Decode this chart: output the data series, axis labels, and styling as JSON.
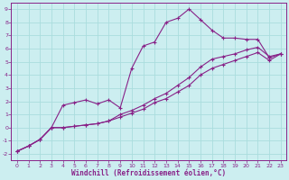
{
  "xlabel": "Windchill (Refroidissement éolien,°C)",
  "bg_color": "#cceef0",
  "line_color": "#882288",
  "grid_color": "#aadddd",
  "xlim": [
    -0.5,
    23.5
  ],
  "ylim": [
    -2.5,
    9.5
  ],
  "xticks": [
    0,
    1,
    2,
    3,
    4,
    5,
    6,
    7,
    8,
    9,
    10,
    11,
    12,
    13,
    14,
    15,
    16,
    17,
    18,
    19,
    20,
    21,
    22,
    23
  ],
  "yticks": [
    -2,
    -1,
    0,
    1,
    2,
    3,
    4,
    5,
    6,
    7,
    8,
    9
  ],
  "line1_x": [
    0,
    1,
    2,
    3,
    4,
    5,
    6,
    7,
    8,
    9,
    10,
    11,
    12,
    13,
    14,
    15,
    16,
    17,
    18,
    19,
    20,
    21,
    22,
    23
  ],
  "line1_y": [
    -1.8,
    -1.4,
    -0.9,
    0.0,
    1.7,
    1.9,
    2.1,
    1.8,
    2.1,
    1.5,
    4.5,
    6.2,
    6.5,
    8.0,
    8.3,
    9.0,
    8.2,
    7.4,
    6.8,
    6.8,
    6.7,
    6.7,
    5.3,
    5.6
  ],
  "line2_x": [
    0,
    1,
    2,
    3,
    4,
    5,
    6,
    7,
    8,
    9,
    10,
    11,
    12,
    13,
    14,
    15,
    16,
    17,
    18,
    19,
    20,
    21,
    22,
    23
  ],
  "line2_y": [
    -1.8,
    -1.4,
    -0.9,
    0.0,
    0.0,
    0.1,
    0.2,
    0.3,
    0.5,
    1.0,
    1.3,
    1.7,
    2.2,
    2.6,
    3.2,
    3.8,
    4.6,
    5.2,
    5.4,
    5.6,
    5.9,
    6.1,
    5.4,
    5.6
  ],
  "line3_x": [
    0,
    1,
    2,
    3,
    4,
    5,
    6,
    7,
    8,
    9,
    10,
    11,
    12,
    13,
    14,
    15,
    16,
    17,
    18,
    19,
    20,
    21,
    22,
    23
  ],
  "line3_y": [
    -1.8,
    -1.4,
    -0.9,
    0.0,
    0.0,
    0.1,
    0.2,
    0.3,
    0.5,
    0.8,
    1.1,
    1.4,
    1.9,
    2.2,
    2.7,
    3.2,
    4.0,
    4.5,
    4.8,
    5.1,
    5.4,
    5.7,
    5.1,
    5.6
  ]
}
